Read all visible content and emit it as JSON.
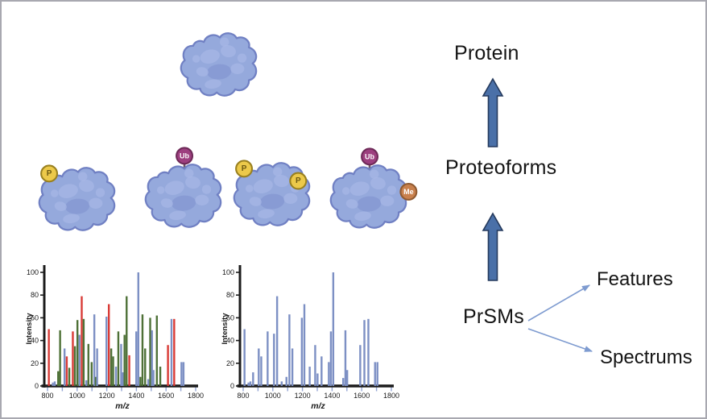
{
  "canvas": {
    "background": "#ffffff",
    "border_color": "#a8a8b0"
  },
  "diagram": {
    "labels": {
      "protein": "Protein",
      "proteoforms": "Proteoforms",
      "prsms": "PrSMs",
      "features": "Features",
      "spectrums": "Spectrums"
    },
    "block_arrow_fill": "#4a70a8",
    "block_arrow_stroke": "#24395c",
    "thin_arrow_color": "#7e9bd0"
  },
  "illustration": {
    "blob_fill": "#95a9dc",
    "blob_stroke": "#7080c3",
    "blob_lump_light": "#a7b7e6",
    "blob_lump_dark": "#8497d2",
    "mod_types": {
      "P": {
        "label": "P",
        "fill": "#ecc94a",
        "stroke": "#99801f",
        "text_color": "#6d5a12",
        "stick_color": "#97801f"
      },
      "Ub": {
        "label": "Ub",
        "fill": "#9d3f7f",
        "stroke": "#6e2a58",
        "text_color": "#ffffff",
        "stick_color": "#6b5a66"
      },
      "Me": {
        "label": "Me",
        "fill": "#c8804d",
        "stroke": "#8f5a31",
        "text_color": "#ffffff",
        "stick_color": "#8a5c33"
      }
    },
    "protein": {
      "mods": []
    },
    "proteoforms": [
      {
        "mods": [
          {
            "type": "P",
            "slot": "top-left"
          }
        ]
      },
      {
        "mods": [
          {
            "type": "Ub",
            "slot": "top"
          }
        ]
      },
      {
        "mods": [
          {
            "type": "P",
            "slot": "top-left"
          },
          {
            "type": "P",
            "slot": "right-upper"
          }
        ]
      },
      {
        "mods": [
          {
            "type": "Ub",
            "slot": "top"
          },
          {
            "type": "Me",
            "slot": "right"
          }
        ]
      }
    ]
  },
  "chart_data": [
    {
      "type": "bar",
      "title": "",
      "xlabel": "m/z",
      "ylabel": "Intensity",
      "xlim": [
        800,
        1800
      ],
      "ylim": [
        0,
        100
      ],
      "x_ticks": [
        800,
        1000,
        1200,
        1400,
        1600,
        1800
      ],
      "y_ticks": [
        0,
        20,
        40,
        60,
        80,
        100
      ],
      "minor_tick_step": 100,
      "axis_color": "#1c1c1c",
      "tick_color": "#93a5d4",
      "label_color": "#1a1a1a",
      "colors": {
        "r": "#d93b36",
        "g": "#4e7137",
        "b": "#7d90c4"
      },
      "bars": [
        [
          809,
          50,
          "r"
        ],
        [
          836,
          3,
          "b"
        ],
        [
          849,
          4,
          "b"
        ],
        [
          872,
          13,
          "g"
        ],
        [
          885,
          49,
          "g"
        ],
        [
          915,
          33,
          "b"
        ],
        [
          930,
          26,
          "r"
        ],
        [
          947,
          16,
          "g"
        ],
        [
          971,
          48,
          "r"
        ],
        [
          985,
          35,
          "g"
        ],
        [
          1002,
          58,
          "g"
        ],
        [
          1016,
          45,
          "b"
        ],
        [
          1031,
          79,
          "r"
        ],
        [
          1044,
          59,
          "g"
        ],
        [
          1062,
          5,
          "b"
        ],
        [
          1076,
          37,
          "g"
        ],
        [
          1098,
          21,
          "g"
        ],
        [
          1116,
          63,
          "b"
        ],
        [
          1126,
          8,
          "g"
        ],
        [
          1135,
          33,
          "b"
        ],
        [
          1198,
          61,
          "b"
        ],
        [
          1214,
          72,
          "r"
        ],
        [
          1230,
          33,
          "g"
        ],
        [
          1243,
          26,
          "g"
        ],
        [
          1262,
          17,
          "b"
        ],
        [
          1278,
          48,
          "g"
        ],
        [
          1297,
          37,
          "b"
        ],
        [
          1307,
          12,
          "b"
        ],
        [
          1320,
          45,
          "g"
        ],
        [
          1334,
          79,
          "g"
        ],
        [
          1352,
          27,
          "r"
        ],
        [
          1399,
          48,
          "b"
        ],
        [
          1413,
          100,
          "b"
        ],
        [
          1427,
          8,
          "g"
        ],
        [
          1441,
          63,
          "g"
        ],
        [
          1459,
          33,
          "g"
        ],
        [
          1480,
          6,
          "b"
        ],
        [
          1493,
          60,
          "g"
        ],
        [
          1505,
          49,
          "b"
        ],
        [
          1515,
          14,
          "b"
        ],
        [
          1538,
          62,
          "g"
        ],
        [
          1561,
          17,
          "g"
        ],
        [
          1613,
          36,
          "r"
        ],
        [
          1637,
          59,
          "b"
        ],
        [
          1655,
          59,
          "r"
        ],
        [
          1704,
          21,
          "b"
        ],
        [
          1718,
          21,
          "b"
        ]
      ]
    },
    {
      "type": "bar",
      "title": "",
      "xlabel": "m/z",
      "ylabel": "Intensity",
      "xlim": [
        800,
        1800
      ],
      "ylim": [
        0,
        100
      ],
      "x_ticks": [
        800,
        1000,
        1200,
        1400,
        1600,
        1800
      ],
      "y_ticks": [
        0,
        20,
        40,
        60,
        80,
        100
      ],
      "minor_tick_step": 100,
      "axis_color": "#1c1c1c",
      "tick_color": "#93a5d4",
      "label_color": "#1a1a1a",
      "colors": {
        "b": "#7d90c4"
      },
      "bars": [
        [
          809,
          50,
          "b"
        ],
        [
          836,
          3,
          "b"
        ],
        [
          849,
          4,
          "b"
        ],
        [
          867,
          12,
          "b"
        ],
        [
          905,
          33,
          "b"
        ],
        [
          922,
          26,
          "b"
        ],
        [
          965,
          48,
          "b"
        ],
        [
          1008,
          46,
          "b"
        ],
        [
          1029,
          79,
          "b"
        ],
        [
          1060,
          4,
          "b"
        ],
        [
          1092,
          8,
          "b"
        ],
        [
          1112,
          63,
          "b"
        ],
        [
          1132,
          33,
          "b"
        ],
        [
          1196,
          60,
          "b"
        ],
        [
          1213,
          72,
          "b"
        ],
        [
          1249,
          17,
          "b"
        ],
        [
          1286,
          36,
          "b"
        ],
        [
          1302,
          11,
          "b"
        ],
        [
          1329,
          26,
          "b"
        ],
        [
          1378,
          21,
          "b"
        ],
        [
          1392,
          48,
          "b"
        ],
        [
          1408,
          100,
          "b"
        ],
        [
          1475,
          7,
          "b"
        ],
        [
          1490,
          49,
          "b"
        ],
        [
          1502,
          14,
          "b"
        ],
        [
          1590,
          36,
          "b"
        ],
        [
          1618,
          58,
          "b"
        ],
        [
          1645,
          59,
          "b"
        ],
        [
          1690,
          21,
          "b"
        ],
        [
          1706,
          21,
          "b"
        ]
      ]
    }
  ]
}
